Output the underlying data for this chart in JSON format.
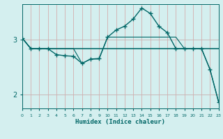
{
  "xlabel": "Humidex (Indice chaleur)",
  "background_color": "#d4efef",
  "grid_v_color": "#d4a0a0",
  "grid_h_color": "#c8b0b0",
  "line_color": "#006666",
  "x_values": [
    0,
    1,
    2,
    3,
    4,
    5,
    6,
    7,
    8,
    9,
    10,
    11,
    12,
    13,
    14,
    15,
    16,
    17,
    18,
    19,
    20,
    21,
    22,
    23
  ],
  "xlim": [
    0,
    23
  ],
  "ylim": [
    1.75,
    3.65
  ],
  "yticks": [
    2,
    3
  ],
  "lines": [
    {
      "y": [
        3.03,
        2.84,
        2.84,
        2.84,
        2.73,
        2.71,
        2.7,
        2.57,
        2.65,
        2.66,
        3.05,
        3.18,
        3.25,
        3.38,
        3.58,
        3.48,
        3.25,
        3.13,
        2.84,
        2.84,
        2.84,
        2.84,
        2.46,
        1.87
      ],
      "marker": "+",
      "linestyle": "-",
      "linewidth": 1.0
    },
    {
      "y": [
        3.03,
        2.84,
        2.84,
        2.84,
        2.84,
        2.84,
        2.84,
        2.84,
        2.84,
        2.84,
        2.84,
        2.84,
        2.84,
        2.84,
        2.84,
        2.84,
        2.84,
        2.84,
        2.84,
        2.84,
        2.84,
        2.84,
        2.84,
        2.84
      ],
      "marker": null,
      "linestyle": "-",
      "linewidth": 0.8
    },
    {
      "y": [
        3.03,
        2.84,
        2.84,
        2.84,
        2.84,
        2.84,
        2.84,
        2.84,
        2.84,
        2.84,
        2.84,
        2.84,
        2.84,
        2.84,
        2.84,
        2.84,
        2.84,
        2.84,
        2.84,
        2.84,
        2.84,
        2.84,
        2.46,
        1.87
      ],
      "marker": null,
      "linestyle": "-",
      "linewidth": 0.8
    },
    {
      "y": [
        3.03,
        2.84,
        2.84,
        2.84,
        2.84,
        2.84,
        2.84,
        2.57,
        2.65,
        2.65,
        3.05,
        3.05,
        3.05,
        3.05,
        3.05,
        3.05,
        3.05,
        3.05,
        3.05,
        2.84,
        2.84,
        2.84,
        2.84,
        2.84
      ],
      "marker": null,
      "linestyle": "-",
      "linewidth": 0.8
    }
  ]
}
